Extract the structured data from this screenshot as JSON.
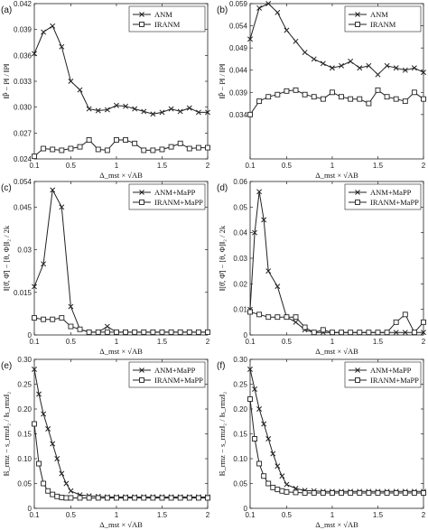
{
  "chart_data": [
    {
      "type": "line",
      "panel_label": "(a)",
      "xlabel": "Δ_mst × √AB",
      "ylabel": "‖P̂ − P‖ / ‖P‖",
      "xlim": [
        0.1,
        2
      ],
      "ylim": [
        0.024,
        0.042
      ],
      "yticks": [
        "0.042",
        "0.039",
        "0.036",
        "0.033",
        "0.030",
        "0.027",
        "0.024"
      ],
      "ytick_values": [
        0.042,
        0.039,
        0.036,
        0.033,
        0.03,
        0.027,
        0.024
      ],
      "xticks": [
        "0.1",
        "0.5",
        "1",
        "1.5",
        "2"
      ],
      "xtick_values": [
        0.1,
        0.5,
        1,
        1.5,
        2
      ],
      "legend_position": "top-right",
      "series": [
        {
          "name": "ANM",
          "marker": "x",
          "x": [
            0.1,
            0.2,
            0.3,
            0.4,
            0.5,
            0.6,
            0.7,
            0.8,
            0.9,
            1.0,
            1.1,
            1.2,
            1.3,
            1.4,
            1.5,
            1.6,
            1.7,
            1.8,
            1.9,
            2.0
          ],
          "y": [
            0.0362,
            0.0387,
            0.0394,
            0.037,
            0.033,
            0.032,
            0.0298,
            0.0296,
            0.0297,
            0.0302,
            0.0301,
            0.0298,
            0.0295,
            0.0292,
            0.0294,
            0.0298,
            0.0295,
            0.0299,
            0.0294,
            0.0294
          ]
        },
        {
          "name": "IRANM",
          "marker": "square",
          "x": [
            0.1,
            0.2,
            0.3,
            0.4,
            0.5,
            0.6,
            0.7,
            0.8,
            0.9,
            1.0,
            1.1,
            1.2,
            1.3,
            1.4,
            1.5,
            1.6,
            1.7,
            1.8,
            1.9,
            2.0
          ],
          "y": [
            0.0243,
            0.0252,
            0.0251,
            0.025,
            0.0252,
            0.0254,
            0.0262,
            0.0251,
            0.025,
            0.0262,
            0.0262,
            0.0258,
            0.025,
            0.025,
            0.0251,
            0.0254,
            0.0258,
            0.0252,
            0.0253,
            0.0253
          ]
        }
      ]
    },
    {
      "type": "line",
      "panel_label": "(b)",
      "xlabel": "Δ_mst × √AB",
      "ylabel": "‖P̂ − P‖ / ‖P‖",
      "xlim": [
        0.1,
        2
      ],
      "ylim": [
        0.024,
        0.059
      ],
      "yticks": [
        "0.059",
        "0.054",
        "0.049",
        "0.044",
        "0.039",
        "0.034"
      ],
      "ytick_values": [
        0.059,
        0.054,
        0.049,
        0.044,
        0.039,
        0.034
      ],
      "xticks": [
        "0.1",
        "0.5",
        "1",
        "1.5",
        "2"
      ],
      "xtick_values": [
        0.1,
        0.5,
        1,
        1.5,
        2
      ],
      "legend_position": "top-right",
      "series": [
        {
          "name": "ANM",
          "marker": "x",
          "x": [
            0.1,
            0.2,
            0.3,
            0.4,
            0.5,
            0.6,
            0.7,
            0.8,
            0.9,
            1.0,
            1.1,
            1.2,
            1.3,
            1.4,
            1.5,
            1.6,
            1.7,
            1.8,
            1.9,
            2.0
          ],
          "y": [
            0.051,
            0.058,
            0.059,
            0.057,
            0.053,
            0.0505,
            0.048,
            0.0465,
            0.0455,
            0.0445,
            0.045,
            0.046,
            0.0445,
            0.045,
            0.043,
            0.045,
            0.0445,
            0.044,
            0.0445,
            0.0435
          ]
        },
        {
          "name": "IRANM",
          "marker": "square",
          "x": [
            0.1,
            0.2,
            0.3,
            0.4,
            0.5,
            0.6,
            0.7,
            0.8,
            0.9,
            1.0,
            1.1,
            1.2,
            1.3,
            1.4,
            1.5,
            1.6,
            1.7,
            1.8,
            1.9,
            2.0
          ],
          "y": [
            0.034,
            0.037,
            0.038,
            0.0385,
            0.0393,
            0.0395,
            0.0385,
            0.038,
            0.0375,
            0.039,
            0.038,
            0.0375,
            0.0375,
            0.0365,
            0.0395,
            0.038,
            0.0375,
            0.037,
            0.039,
            0.0375
          ]
        }
      ]
    },
    {
      "type": "line",
      "panel_label": "(c)",
      "xlabel": "Δ_mst × √AB",
      "ylabel": "‖[θ̂, Φ̂] − [θ, Φ]‖₂ / 2k",
      "xlim": [
        0.1,
        2
      ],
      "ylim": [
        0,
        0.054
      ],
      "yticks": [
        "0.054",
        "0.045",
        "0.03",
        "0.015",
        "0"
      ],
      "ytick_values": [
        0.054,
        0.045,
        0.03,
        0.015,
        0
      ],
      "xticks": [
        "0.1",
        "0.5",
        "1",
        "1.5",
        "2"
      ],
      "xtick_values": [
        0.1,
        0.5,
        1,
        1.5,
        2
      ],
      "legend_position": "top-right",
      "series": [
        {
          "name": "ANM+MaPP",
          "marker": "x",
          "x": [
            0.1,
            0.2,
            0.3,
            0.4,
            0.5,
            0.6,
            0.7,
            0.8,
            0.9,
            1.0,
            1.1,
            1.2,
            1.3,
            1.4,
            1.5,
            1.6,
            1.7,
            1.8,
            1.9,
            2.0
          ],
          "y": [
            0.017,
            0.025,
            0.051,
            0.045,
            0.01,
            0.002,
            0.001,
            0.001,
            0.003,
            0.001,
            0.001,
            0.001,
            0.001,
            0.001,
            0.001,
            0.001,
            0.001,
            0.001,
            0.001,
            0.001
          ]
        },
        {
          "name": "IRANM+MaPP",
          "marker": "square",
          "x": [
            0.1,
            0.2,
            0.3,
            0.4,
            0.5,
            0.6,
            0.7,
            0.8,
            0.9,
            1.0,
            1.1,
            1.2,
            1.3,
            1.4,
            1.5,
            1.6,
            1.7,
            1.8,
            1.9,
            2.0
          ],
          "y": [
            0.006,
            0.0055,
            0.0055,
            0.006,
            0.003,
            0.002,
            0.001,
            0.001,
            0.001,
            0.001,
            0.001,
            0.001,
            0.001,
            0.001,
            0.001,
            0.001,
            0.001,
            0.001,
            0.001,
            0.001
          ]
        }
      ]
    },
    {
      "type": "line",
      "panel_label": "(d)",
      "xlabel": "Δ_mst × √AB",
      "ylabel": "‖[θ̂, Φ̂] − [θ, Φ]‖₂ / 2k",
      "xlim": [
        0.1,
        2
      ],
      "ylim": [
        0,
        0.06
      ],
      "yticks": [
        "0.06",
        "0.05",
        "0.04",
        "0.03",
        "0.02",
        "0.01",
        "0"
      ],
      "ytick_values": [
        0.06,
        0.05,
        0.04,
        0.03,
        0.02,
        0.01,
        0
      ],
      "xticks": [
        "0.1",
        "0.5",
        "1",
        "1.5",
        "2"
      ],
      "xtick_values": [
        0.1,
        0.5,
        1,
        1.5,
        2
      ],
      "legend_position": "top-right",
      "series": [
        {
          "name": "ANM+MaPP",
          "marker": "x",
          "x": [
            0.1,
            0.15,
            0.2,
            0.25,
            0.3,
            0.4,
            0.5,
            0.6,
            0.7,
            0.8,
            0.9,
            1.0,
            1.1,
            1.2,
            1.3,
            1.4,
            1.5,
            1.6,
            1.7,
            1.8,
            1.9,
            2.0
          ],
          "y": [
            0.01,
            0.04,
            0.056,
            0.045,
            0.025,
            0.019,
            0.007,
            0.005,
            0.002,
            0.001,
            0.001,
            0.001,
            0.001,
            0.001,
            0.001,
            0.001,
            0.001,
            0.001,
            0.001,
            0.001,
            0.001,
            0.001
          ]
        },
        {
          "name": "IRANM+MaPP",
          "marker": "square",
          "x": [
            0.1,
            0.2,
            0.3,
            0.4,
            0.5,
            0.6,
            0.7,
            0.8,
            0.9,
            1.0,
            1.1,
            1.2,
            1.3,
            1.4,
            1.5,
            1.6,
            1.7,
            1.8,
            1.9,
            2.0
          ],
          "y": [
            0.009,
            0.008,
            0.007,
            0.007,
            0.007,
            0.007,
            0.003,
            0.001,
            0.002,
            0.001,
            0.001,
            0.001,
            0.001,
            0.001,
            0.001,
            0.001,
            0.005,
            0.008,
            0.001,
            0.005
          ]
        }
      ]
    },
    {
      "type": "line",
      "panel_label": "(e)",
      "xlabel": "Δ_mst × √AB",
      "ylabel": "‖ŝ_rmz − s_rmz‖₂ / ‖s_rmz‖₂",
      "xlim": [
        0.1,
        2
      ],
      "ylim": [
        0,
        0.3
      ],
      "yticks": [
        "0.30",
        "0.25",
        "0.20",
        "0.15",
        "0.10",
        "0.05",
        "0"
      ],
      "ytick_values": [
        0.3,
        0.25,
        0.2,
        0.15,
        0.1,
        0.05,
        0
      ],
      "xticks": [
        "0.1",
        "0.5",
        "1",
        "1.5",
        "2"
      ],
      "xtick_values": [
        0.1,
        0.5,
        1,
        1.5,
        2
      ],
      "legend_position": "top-right",
      "series": [
        {
          "name": "ANM+MaPP",
          "marker": "x",
          "x": [
            0.1,
            0.15,
            0.2,
            0.25,
            0.3,
            0.35,
            0.4,
            0.45,
            0.5,
            0.6,
            0.7,
            0.8,
            0.9,
            1.0,
            1.1,
            1.2,
            1.3,
            1.4,
            1.5,
            1.6,
            1.7,
            1.8,
            1.9,
            2.0
          ],
          "y": [
            0.28,
            0.23,
            0.19,
            0.16,
            0.13,
            0.1,
            0.07,
            0.05,
            0.035,
            0.027,
            0.025,
            0.024,
            0.023,
            0.023,
            0.023,
            0.023,
            0.023,
            0.023,
            0.023,
            0.023,
            0.023,
            0.023,
            0.023,
            0.023
          ]
        },
        {
          "name": "IRANM+MaPP",
          "marker": "square",
          "x": [
            0.1,
            0.15,
            0.2,
            0.25,
            0.3,
            0.35,
            0.4,
            0.45,
            0.5,
            0.6,
            0.7,
            0.8,
            0.9,
            1.0,
            1.1,
            1.2,
            1.3,
            1.4,
            1.5,
            1.6,
            1.7,
            1.8,
            1.9,
            2.0
          ],
          "y": [
            0.17,
            0.09,
            0.05,
            0.035,
            0.028,
            0.024,
            0.022,
            0.021,
            0.021,
            0.021,
            0.021,
            0.021,
            0.021,
            0.021,
            0.021,
            0.021,
            0.021,
            0.021,
            0.021,
            0.021,
            0.021,
            0.021,
            0.021,
            0.021
          ]
        }
      ]
    },
    {
      "type": "line",
      "panel_label": "(f)",
      "xlabel": "Δ_mst × √AB",
      "ylabel": "‖ŝ_rmz − s_rmz‖₂ / ‖s_rmz‖₂",
      "xlim": [
        0.1,
        2
      ],
      "ylim": [
        0,
        0.3
      ],
      "yticks": [
        "0.30",
        "0.25",
        "0.20",
        "0.15",
        "0.10",
        "0.05",
        "0"
      ],
      "ytick_values": [
        0.3,
        0.25,
        0.2,
        0.15,
        0.1,
        0.05,
        0
      ],
      "xticks": [
        "0.1",
        "0.5",
        "1",
        "1.5",
        "2"
      ],
      "xtick_values": [
        0.1,
        0.5,
        1,
        1.5,
        2
      ],
      "legend_position": "top-right",
      "series": [
        {
          "name": "ANM+MaPP",
          "marker": "x",
          "x": [
            0.1,
            0.15,
            0.2,
            0.25,
            0.3,
            0.35,
            0.4,
            0.45,
            0.5,
            0.6,
            0.7,
            0.8,
            0.9,
            1.0,
            1.1,
            1.2,
            1.3,
            1.4,
            1.5,
            1.6,
            1.7,
            1.8,
            1.9,
            2.0
          ],
          "y": [
            0.28,
            0.24,
            0.2,
            0.17,
            0.14,
            0.11,
            0.085,
            0.065,
            0.048,
            0.04,
            0.036,
            0.035,
            0.034,
            0.034,
            0.034,
            0.034,
            0.034,
            0.034,
            0.034,
            0.034,
            0.034,
            0.034,
            0.034,
            0.034
          ]
        },
        {
          "name": "IRANM+MaPP",
          "marker": "square",
          "x": [
            0.1,
            0.15,
            0.2,
            0.25,
            0.3,
            0.35,
            0.4,
            0.45,
            0.5,
            0.6,
            0.7,
            0.8,
            0.9,
            1.0,
            1.1,
            1.2,
            1.3,
            1.4,
            1.5,
            1.6,
            1.7,
            1.8,
            1.9,
            2.0
          ],
          "y": [
            0.22,
            0.14,
            0.09,
            0.065,
            0.05,
            0.042,
            0.038,
            0.035,
            0.033,
            0.032,
            0.031,
            0.031,
            0.031,
            0.031,
            0.031,
            0.031,
            0.031,
            0.031,
            0.031,
            0.031,
            0.031,
            0.031,
            0.031,
            0.031
          ]
        }
      ]
    }
  ]
}
